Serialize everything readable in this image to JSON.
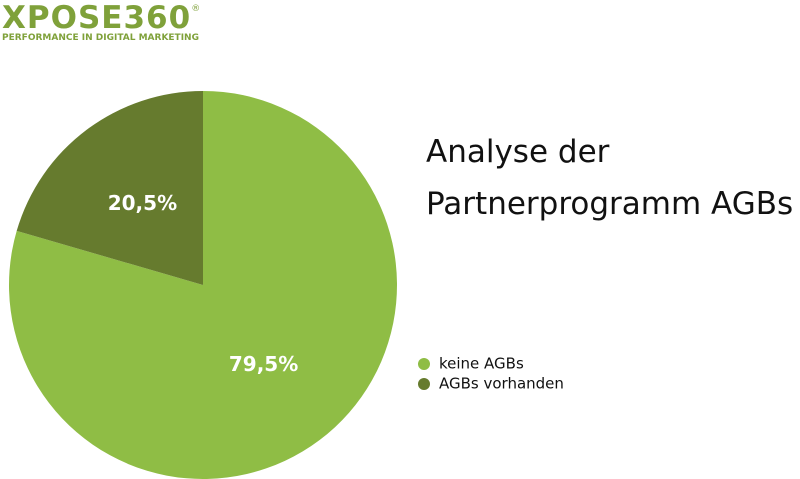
{
  "logo": {
    "name": "XPOSE360",
    "mark": "®",
    "tagline": "PERFORMANCE IN DIGITAL MARKETING"
  },
  "chart_data": {
    "type": "pie",
    "title": "Analyse der Partnerprogramm AGBs",
    "categories": [
      "keine AGBs",
      "AGBs vorhanden"
    ],
    "series": [
      {
        "name": "AGBs",
        "values": [
          79.5,
          20.5
        ],
        "value_labels": [
          "79,5%",
          "20,5%"
        ]
      }
    ],
    "colors": [
      "#8fbd45",
      "#667b2e"
    ]
  }
}
